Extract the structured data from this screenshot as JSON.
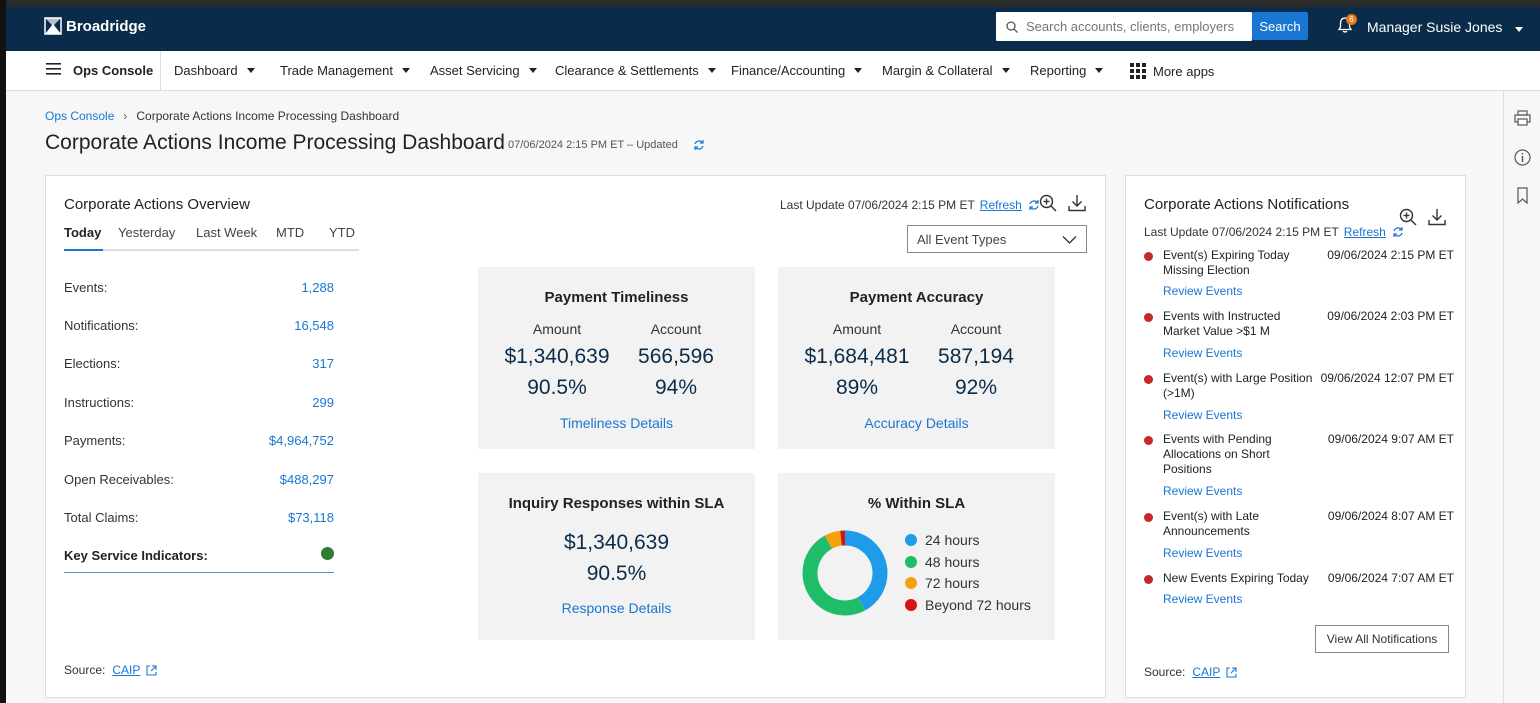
{
  "header": {
    "brand": "Broadridge",
    "search_placeholder": "Search accounts, clients, employers",
    "search_button": "Search",
    "notification_count": "6",
    "user": "Manager Susie Jones"
  },
  "nav": {
    "console": "Ops Console",
    "items": [
      "Dashboard",
      "Trade Management",
      "Asset Servicing",
      "Clearance & Settlements",
      "Finance/Accounting",
      "Margin & Collateral",
      "Reporting"
    ],
    "more": "More apps"
  },
  "breadcrumb": {
    "root": "Ops Console",
    "current": "Corporate Actions Income Processing Dashboard"
  },
  "page": {
    "title": "Corporate Actions Income Processing Dashboard",
    "updated": "07/06/2024 2:15 PM ET – Updated"
  },
  "overview": {
    "title": "Corporate Actions Overview",
    "tabs": [
      "Today",
      "Yesterday",
      "Last Week",
      "MTD",
      "YTD"
    ],
    "metrics": [
      {
        "label": "Events:",
        "value": "1,288"
      },
      {
        "label": "Notifications:",
        "value": "16,548"
      },
      {
        "label": "Elections:",
        "value": "317"
      },
      {
        "label": "Instructions:",
        "value": "299"
      },
      {
        "label": "Payments:",
        "value": "$4,964,752"
      },
      {
        "label": "Open Receivables:",
        "value": "$488,297"
      },
      {
        "label": "Total Claims:",
        "value": "$73,118"
      }
    ],
    "kpi_label": "Key Service Indicators:",
    "last_update": "Last Update 07/06/2024 2:15 PM ET",
    "refresh": "Refresh",
    "event_type": "All Event Types",
    "source_label": "Source:",
    "source_link": "CAIP"
  },
  "timeliness": {
    "title": "Payment Timeliness",
    "col1": "Amount",
    "col2": "Account",
    "amount": "$1,340,639",
    "account": "566,596",
    "amount_pct": "90.5%",
    "account_pct": "94%",
    "link": "Timeliness Details"
  },
  "accuracy": {
    "title": "Payment Accuracy",
    "col1": "Amount",
    "col2": "Account",
    "amount": "$1,684,481",
    "account": "587,194",
    "amount_pct": "89%",
    "account_pct": "92%",
    "link": "Accuracy Details"
  },
  "inquiry": {
    "title": "Inquiry Responses within SLA",
    "amount": "$1,340,639",
    "pct": "90.5%",
    "link": "Response Details"
  },
  "sla": {
    "title": "% Within SLA",
    "legend": [
      {
        "label": "24 hours",
        "color": "#1e9be9"
      },
      {
        "label": "48 hours",
        "color": "#1fbd6a"
      },
      {
        "label": "72 hours",
        "color": "#f5a10f"
      },
      {
        "label": "Beyond 72 hours",
        "color": "#d61414"
      }
    ]
  },
  "chart_data": {
    "type": "pie",
    "categories": [
      "24 hours",
      "48 hours",
      "72 hours",
      "Beyond 72 hours"
    ],
    "values": [
      42,
      50,
      6,
      2
    ]
  },
  "notifications": {
    "title": "Corporate Actions Notifications",
    "last_update": "Last Update 07/06/2024 2:15 PM ET",
    "refresh": "Refresh",
    "items": [
      {
        "text": "Event(s) Expiring Today Missing Election",
        "time": "09/06/2024 2:15 PM ET",
        "link": "Review Events"
      },
      {
        "text": "Events with Instructed Market Value >$1 M",
        "time": "09/06/2024 2:03 PM ET",
        "link": "Review Events"
      },
      {
        "text": "Event(s) with Large Position (>1M)",
        "time": "09/06/2024 12:07 PM ET",
        "link": "Review Events"
      },
      {
        "text": "Events with Pending Allocations on Short Positions",
        "time": "09/06/2024 9:07 AM ET",
        "link": "Review Events"
      },
      {
        "text": "Event(s) with Late Announcements",
        "time": "09/06/2024 8:07 AM ET",
        "link": "Review Events"
      },
      {
        "text": "New Events Expiring Today",
        "time": "09/06/2024 7:07 AM ET",
        "link": "Review Events"
      }
    ],
    "view_all": "View All Notifications",
    "source_label": "Source:",
    "source_link": "CAIP"
  }
}
